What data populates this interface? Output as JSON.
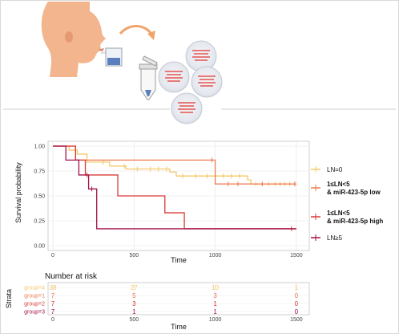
{
  "chart_data": {
    "type": "line",
    "subtype": "kaplan-meier",
    "xlabel": "Time",
    "ylabel": "Survival probability",
    "xlim": [
      0,
      1550
    ],
    "ylim": [
      0,
      1
    ],
    "xticks": [
      0,
      500,
      1000,
      1500
    ],
    "yticks": [
      0,
      0.25,
      0.5,
      0.75,
      1
    ],
    "ytick_labels": [
      "0.00",
      "0.25",
      "0.50",
      "0.75",
      "1.00"
    ],
    "grid": true,
    "legend_position": "right",
    "series": [
      {
        "name": "LN=0",
        "color": "#f5c86a",
        "steps": [
          [
            0,
            1.0
          ],
          [
            100,
            0.96
          ],
          [
            150,
            0.92
          ],
          [
            210,
            0.84
          ],
          [
            350,
            0.8
          ],
          [
            450,
            0.77
          ],
          [
            720,
            0.74
          ],
          [
            760,
            0.7
          ],
          [
            1200,
            0.66
          ],
          [
            1220,
            0.62
          ],
          [
            1500,
            0.62
          ]
        ],
        "censor": [
          310,
          440,
          520,
          600,
          650,
          700,
          800,
          880,
          950,
          1000,
          1050,
          1100,
          1150,
          1250,
          1290,
          1330,
          1370,
          1400,
          1430,
          1460,
          1490
        ]
      },
      {
        "name": "1≤LN<5 & miR-423-5p low",
        "color": "#ef7a52",
        "steps": [
          [
            0,
            1.0
          ],
          [
            140,
            0.86
          ],
          [
            1000,
            0.62
          ],
          [
            1500,
            0.62
          ]
        ],
        "censor": [
          980,
          1080,
          1140,
          1290,
          1490
        ]
      },
      {
        "name": "1≤LN<5 & miR-423-5p high",
        "color": "#d93a36",
        "steps": [
          [
            0,
            1.0
          ],
          [
            140,
            0.86
          ],
          [
            200,
            0.71
          ],
          [
            400,
            0.5
          ],
          [
            690,
            0.33
          ],
          [
            810,
            0.17
          ],
          [
            1500,
            0.17
          ]
        ],
        "censor": [
          210,
          1470
        ]
      },
      {
        "name": "LN≥5",
        "color": "#a3114b",
        "steps": [
          [
            0,
            1.0
          ],
          [
            80,
            0.86
          ],
          [
            160,
            0.71
          ],
          [
            220,
            0.57
          ],
          [
            270,
            0.17
          ],
          [
            1500,
            0.17
          ]
        ],
        "censor": [
          240
        ]
      }
    ]
  },
  "legend": {
    "items": [
      {
        "line1": "LN=0",
        "line2": "",
        "bold": false
      },
      {
        "line1": "1≤LN<5",
        "line2": "& miR-423-5p low",
        "bold": true
      },
      {
        "line1": "1≤LN<5",
        "line2": "& miR-423-5p high",
        "bold": true
      },
      {
        "line1": "LN≥5",
        "line2": "",
        "bold": false
      }
    ]
  },
  "risk_table": {
    "title": "Number at risk",
    "ylabel": "Strata",
    "xlabel": "Time",
    "xticks": [
      "0",
      "500",
      "1000",
      "1500"
    ],
    "rows": [
      {
        "label": "group=4",
        "color": "#f5c86a",
        "values": [
          "38",
          "27",
          "10",
          "1"
        ]
      },
      {
        "label": "group=1",
        "color": "#ef7a52",
        "values": [
          "7",
          "5",
          "3",
          "0"
        ]
      },
      {
        "label": "group=2",
        "color": "#d93a36",
        "values": [
          "7",
          "3",
          "1",
          "0"
        ]
      },
      {
        "label": "group=3",
        "color": "#a3114b",
        "values": [
          "7",
          "1",
          "1",
          "0"
        ]
      }
    ]
  },
  "illustration": {
    "icons": [
      "person-profile-icon",
      "saliva-cup-icon",
      "curved-arrow-icon",
      "microtube-icon",
      "cell-dish-icon"
    ]
  }
}
